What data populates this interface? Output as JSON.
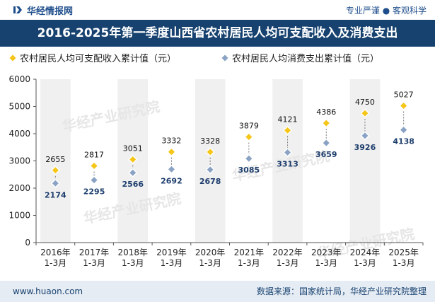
{
  "header": {
    "brand_name": "华经情报网",
    "tags": "专业严谨 ● 客观科学",
    "title": "2016-2025年第一季度山西省农村居民人均可支配收入及消费支出"
  },
  "footer": {
    "website": "www.huaon.com",
    "source": "数据来源：国家统计局，华经产业研究院整理"
  },
  "watermark": "华经产业研究院",
  "colors": {
    "series1": "#f5c518",
    "series2": "#8aa3c4",
    "title_band": "#17426f",
    "column_band": "#f0f0f0"
  },
  "chart_data": {
    "type": "line",
    "categories": [
      "2016年\n1-3月",
      "2017年\n1-3月",
      "2018年\n1-3月",
      "2019年\n1-3月",
      "2020年\n1-3月",
      "2021年\n1-3月",
      "2022年\n1-3月",
      "2023年\n1-3月",
      "2024年\n1-3月",
      "2025年\n1-3月"
    ],
    "series": [
      {
        "name": "农村居民人均可支配收入累计值（元）",
        "marker": "diamond",
        "color": "#f5c518",
        "values": [
          2655,
          2817,
          3051,
          3332,
          3328,
          3879,
          4121,
          4386,
          4750,
          5027
        ]
      },
      {
        "name": "农村居民人均消费支出累计值（元）",
        "marker": "diamond",
        "color": "#8aa3c4",
        "values": [
          2174,
          2295,
          2566,
          2692,
          2678,
          3085,
          3313,
          3659,
          3926,
          4138
        ]
      }
    ],
    "ylim": [
      0,
      6000
    ],
    "yticks": [
      0,
      1000,
      2000,
      3000,
      4000,
      5000,
      6000
    ],
    "legend_position": "top-left",
    "grid": false
  }
}
